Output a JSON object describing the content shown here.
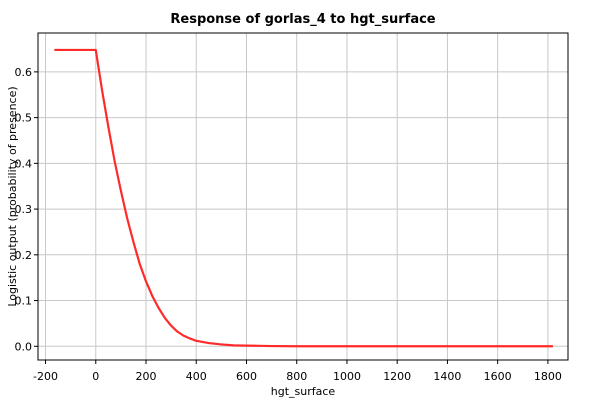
{
  "chart_data": {
    "type": "line",
    "title": "Response of gorlas_4 to hgt_surface",
    "xlabel": "hgt_surface",
    "ylabel": "Logistic output (probability of presence)",
    "xlim": [
      -230,
      1880
    ],
    "ylim": [
      -0.03,
      0.685
    ],
    "xticks": [
      -200,
      0,
      200,
      400,
      600,
      800,
      1000,
      1200,
      1400,
      1600,
      1800
    ],
    "yticks": [
      0.0,
      0.1,
      0.2,
      0.3,
      0.4,
      0.5,
      0.6
    ],
    "grid": true,
    "series": [
      {
        "color": "#ff2a2a",
        "x": [
          -165,
          -100,
          -50,
          0,
          25,
          50,
          75,
          100,
          125,
          150,
          175,
          200,
          225,
          250,
          275,
          300,
          325,
          350,
          375,
          400,
          450,
          500,
          550,
          600,
          650,
          700,
          800,
          1000,
          1200,
          1400,
          1600,
          1820
        ],
        "y": [
          0.648,
          0.648,
          0.648,
          0.648,
          0.56,
          0.48,
          0.405,
          0.34,
          0.28,
          0.228,
          0.18,
          0.142,
          0.11,
          0.084,
          0.062,
          0.045,
          0.032,
          0.023,
          0.017,
          0.012,
          0.007,
          0.004,
          0.002,
          0.0015,
          0.001,
          0.0005,
          0.0,
          0.0,
          0.0,
          0.0,
          0.0,
          0.0
        ]
      }
    ]
  }
}
